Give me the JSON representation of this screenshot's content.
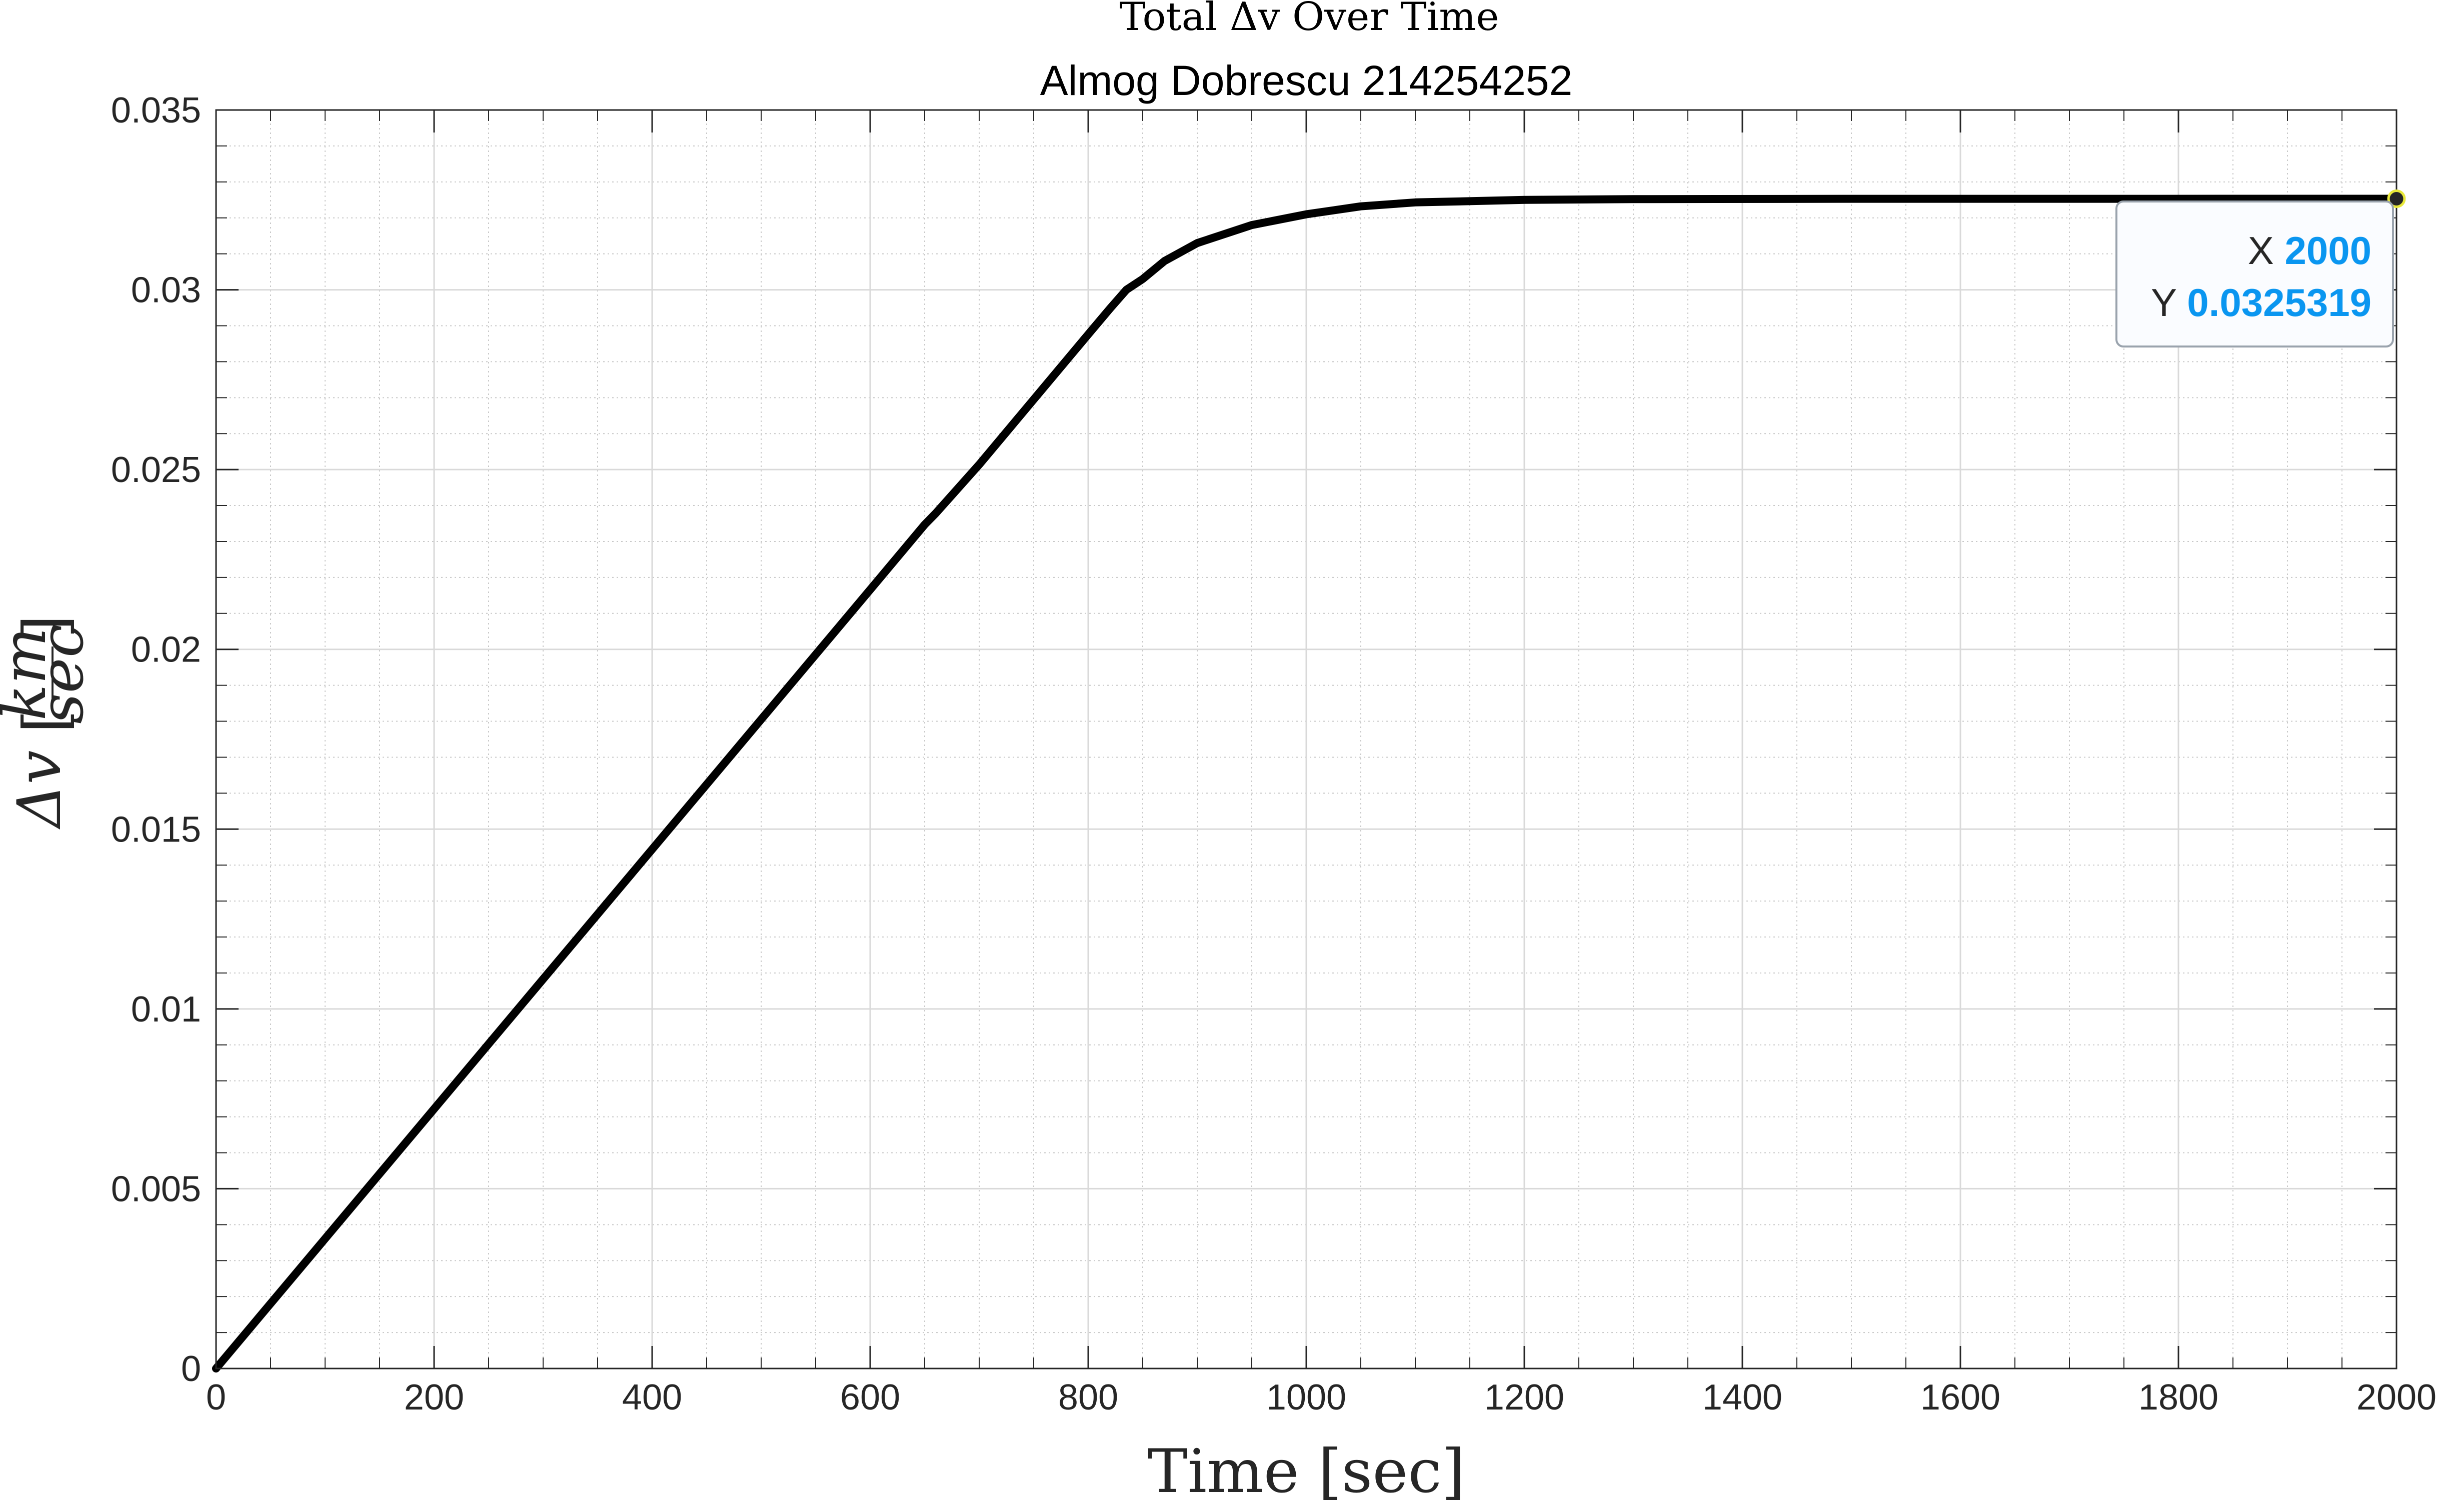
{
  "chart_data": {
    "type": "line",
    "title": "Total Δv Over Time",
    "subtitle": "Almog Dobrescu 214254252",
    "xlabel": "Time [sec]",
    "ylabel": {
      "symbol": "Δv",
      "unit_numerator": "km",
      "unit_denominator": "sec"
    },
    "xlim": [
      0,
      2000
    ],
    "ylim": [
      0,
      0.035
    ],
    "x_ticks": [
      0,
      200,
      400,
      600,
      800,
      1000,
      1200,
      1400,
      1600,
      1800,
      2000
    ],
    "x_tick_labels": [
      "0",
      "200",
      "400",
      "600",
      "800",
      "1000",
      "1200",
      "1400",
      "1600",
      "1800",
      "2000"
    ],
    "y_ticks": [
      0,
      0.005,
      0.01,
      0.015,
      0.02,
      0.025,
      0.03,
      0.035
    ],
    "y_tick_labels": [
      "0",
      "0.005",
      "0.01",
      "0.015",
      "0.02",
      "0.025",
      "0.03",
      "0.035"
    ],
    "x_minor_step": 50,
    "y_minor_step": 0.001,
    "grid": true,
    "minor_grid": true,
    "series": [
      {
        "color": "#000000",
        "x": [
          0,
          100,
          200,
          300,
          400,
          500,
          600,
          650,
          660,
          700,
          750,
          800,
          820,
          835,
          850,
          870,
          900,
          950,
          1000,
          1050,
          1100,
          1200,
          1300,
          1500,
          1700,
          2000
        ],
        "y": [
          0,
          0.00361,
          0.00722,
          0.01083,
          0.01444,
          0.01805,
          0.02166,
          0.02347,
          0.02378,
          0.02514,
          0.02695,
          0.02876,
          0.02948,
          0.03,
          0.0303,
          0.0308,
          0.0313,
          0.0318,
          0.0321,
          0.03232,
          0.03243,
          0.0325,
          0.03252,
          0.03253,
          0.03253,
          0.0325319
        ]
      }
    ],
    "datatip": {
      "x_key": "X",
      "x_value": "2000",
      "y_key": "Y",
      "y_value": "0.0325319",
      "x": 2000,
      "y": 0.0325319
    }
  }
}
